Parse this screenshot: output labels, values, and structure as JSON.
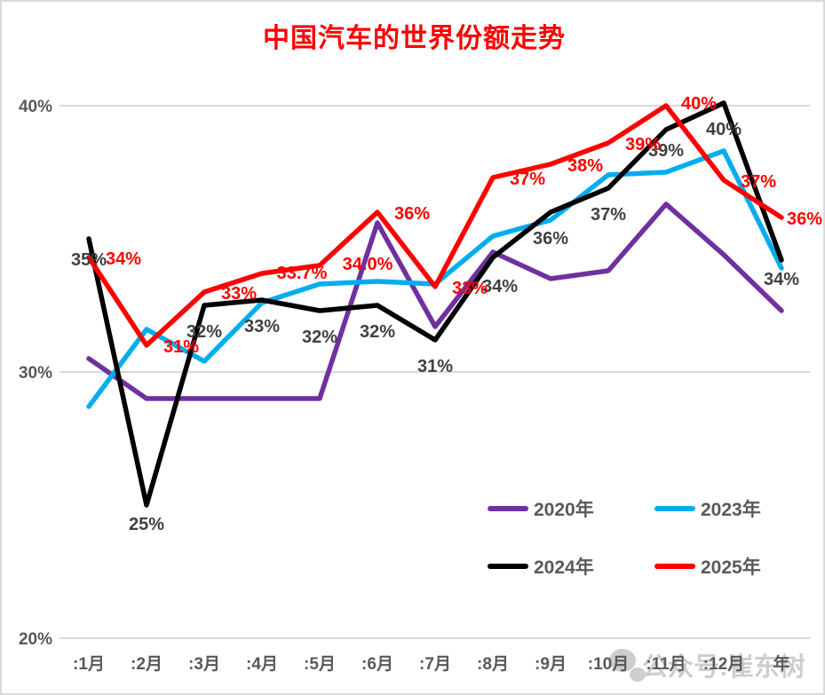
{
  "title": "中国汽车的世界份额走势",
  "title_color": "#FF0000",
  "watermark": {
    "icon": "chat-bubbles-icon",
    "text": "公众号:崔东树",
    "text_color": "#cdcdcd",
    "icon_color": "#c2c2c2"
  },
  "chart_data": {
    "type": "line",
    "title": "中国汽车的世界份额走势",
    "categories": [
      ":1月",
      ":2月",
      ":3月",
      ":4月",
      ":5月",
      ":6月",
      ":7月",
      ":8月",
      ":9月",
      ":10月",
      ":11月",
      ":12月",
      "年"
    ],
    "y_ticks": [
      {
        "label": "40%",
        "value": 40
      },
      {
        "label": "30%",
        "value": 30
      },
      {
        "label": "20%",
        "value": 20
      }
    ],
    "ylim": [
      20,
      41
    ],
    "grid": "horizontal-only",
    "axis_text_color": "#595959",
    "gridline_color": "#d9d9d9",
    "legend_position": "inside-bottom-right",
    "series": [
      {
        "name": "2020年",
        "color": "#7030A0",
        "values": [
          30.5,
          29,
          29,
          29,
          29,
          35.6,
          31.7,
          34.5,
          33.5,
          33.8,
          36.3,
          34.4,
          32.3
        ],
        "labels": [],
        "label_color": "",
        "label_anchor": ""
      },
      {
        "name": "2023年",
        "color": "#00AEEF",
        "values": [
          28.7,
          31.6,
          30.4,
          32.6,
          33.3,
          33.4,
          33.3,
          35.1,
          35.7,
          37.4,
          37.5,
          38.3,
          33.9
        ],
        "labels": [],
        "label_color": "",
        "label_anchor": ""
      },
      {
        "name": "2024年",
        "color": "#000000",
        "values": [
          35,
          25,
          32.5,
          32.7,
          32.3,
          32.5,
          31.2,
          34.3,
          36,
          36.9,
          39.1,
          40.1,
          34.2
        ],
        "labels": [
          "35%",
          "25%",
          "32%",
          "33%",
          "32%",
          "32%",
          "31%",
          "34%",
          "36%",
          "37%",
          "39%",
          "40%",
          "34%"
        ],
        "label_color": "#404040",
        "label_anchor": "below"
      },
      {
        "name": "2025年",
        "color": "#FF0000",
        "values": [
          34.3,
          31,
          33,
          33.7,
          34,
          36,
          33.2,
          37.3,
          37.8,
          38.6,
          40,
          37.2,
          35.8
        ],
        "labels": [
          "34%",
          "31%",
          "33%",
          "33.7%",
          "34.0%",
          "36%",
          "33%",
          "37%",
          "38%",
          "39%",
          "40%",
          "37%",
          "36%"
        ],
        "label_color": "#FF0000",
        "label_anchor": "right"
      }
    ]
  }
}
